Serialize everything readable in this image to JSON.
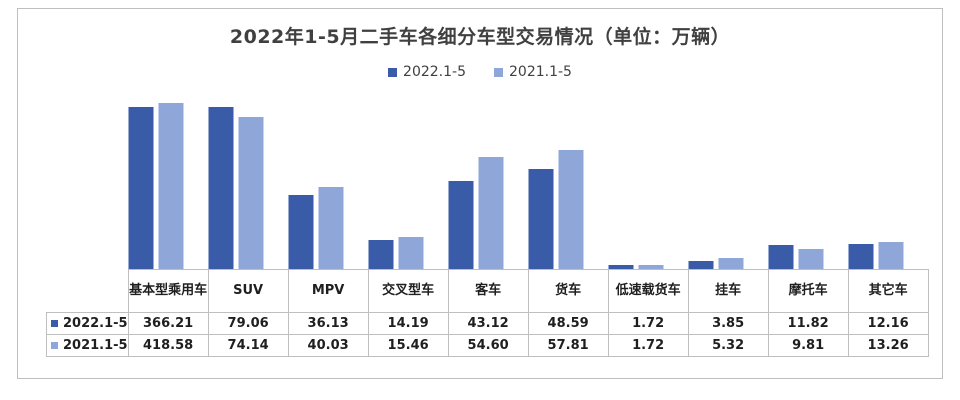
{
  "chart_data": {
    "type": "bar",
    "title": "2022年1-5月二手车各细分车型交易情况（单位：万辆）",
    "categories": [
      "基本型乘用车",
      "SUV",
      "MPV",
      "交叉型车",
      "客车",
      "货车",
      "低速载货车",
      "挂车",
      "摩托车",
      "其它车"
    ],
    "series": [
      {
        "name": "2022.1-5",
        "color": "#3a5ba8",
        "values": [
          366.21,
          79.06,
          36.13,
          14.19,
          43.12,
          48.59,
          1.72,
          3.85,
          11.82,
          12.16
        ]
      },
      {
        "name": "2021.1-5",
        "color": "#8fa6d8",
        "values": [
          418.58,
          74.14,
          40.03,
          15.46,
          54.6,
          57.81,
          1.72,
          5.32,
          9.81,
          13.26
        ]
      }
    ],
    "axis_breaks": {
      "基本型乘用车": true
    },
    "grid": false,
    "legend_position": "top-center",
    "data_table": true
  }
}
